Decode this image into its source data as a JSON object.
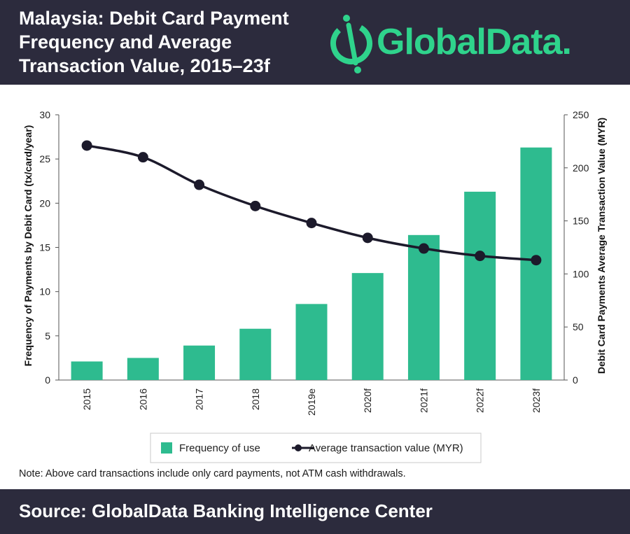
{
  "header": {
    "title": "Malaysia: Debit Card Payment Frequency and Average Transaction Value, 2015–23f",
    "logo_text": "GlobalData."
  },
  "colors": {
    "bar": "#2ebb8f",
    "line": "#1c1a2b",
    "header_bg": "#2c2b3d",
    "logo": "#2fd38c"
  },
  "chart_data": {
    "type": "bar",
    "categories": [
      "2015",
      "2016",
      "2017",
      "2018",
      "2019e",
      "2020f",
      "2021f",
      "2022f",
      "2023f"
    ],
    "series": [
      {
        "name": "Frequency of use",
        "type": "bar",
        "axis": "left",
        "values": [
          2.1,
          2.5,
          3.9,
          5.8,
          8.6,
          12.1,
          16.4,
          21.3,
          26.3
        ]
      },
      {
        "name": "Average transaction value (MYR)",
        "type": "line",
        "axis": "right",
        "values": [
          221,
          210,
          184,
          164,
          148,
          134,
          124,
          117,
          113
        ]
      }
    ],
    "ylabel": "Frequency of Payments by Debit Card (tx/card/year)",
    "y2label": "Debit Card Payments Average Transaction Value (MYR)",
    "ylim": [
      0,
      30
    ],
    "y2lim": [
      0,
      250
    ],
    "yticks": [
      0,
      5,
      10,
      15,
      20,
      25,
      30
    ],
    "y2ticks": [
      0,
      50,
      100,
      150,
      200,
      250
    ],
    "grid": false,
    "legend_position": "bottom"
  },
  "note": "Note: Above card transactions include only card payments, not ATM cash withdrawals.",
  "footer": {
    "source": "Source: GlobalData Banking Intelligence Center"
  }
}
